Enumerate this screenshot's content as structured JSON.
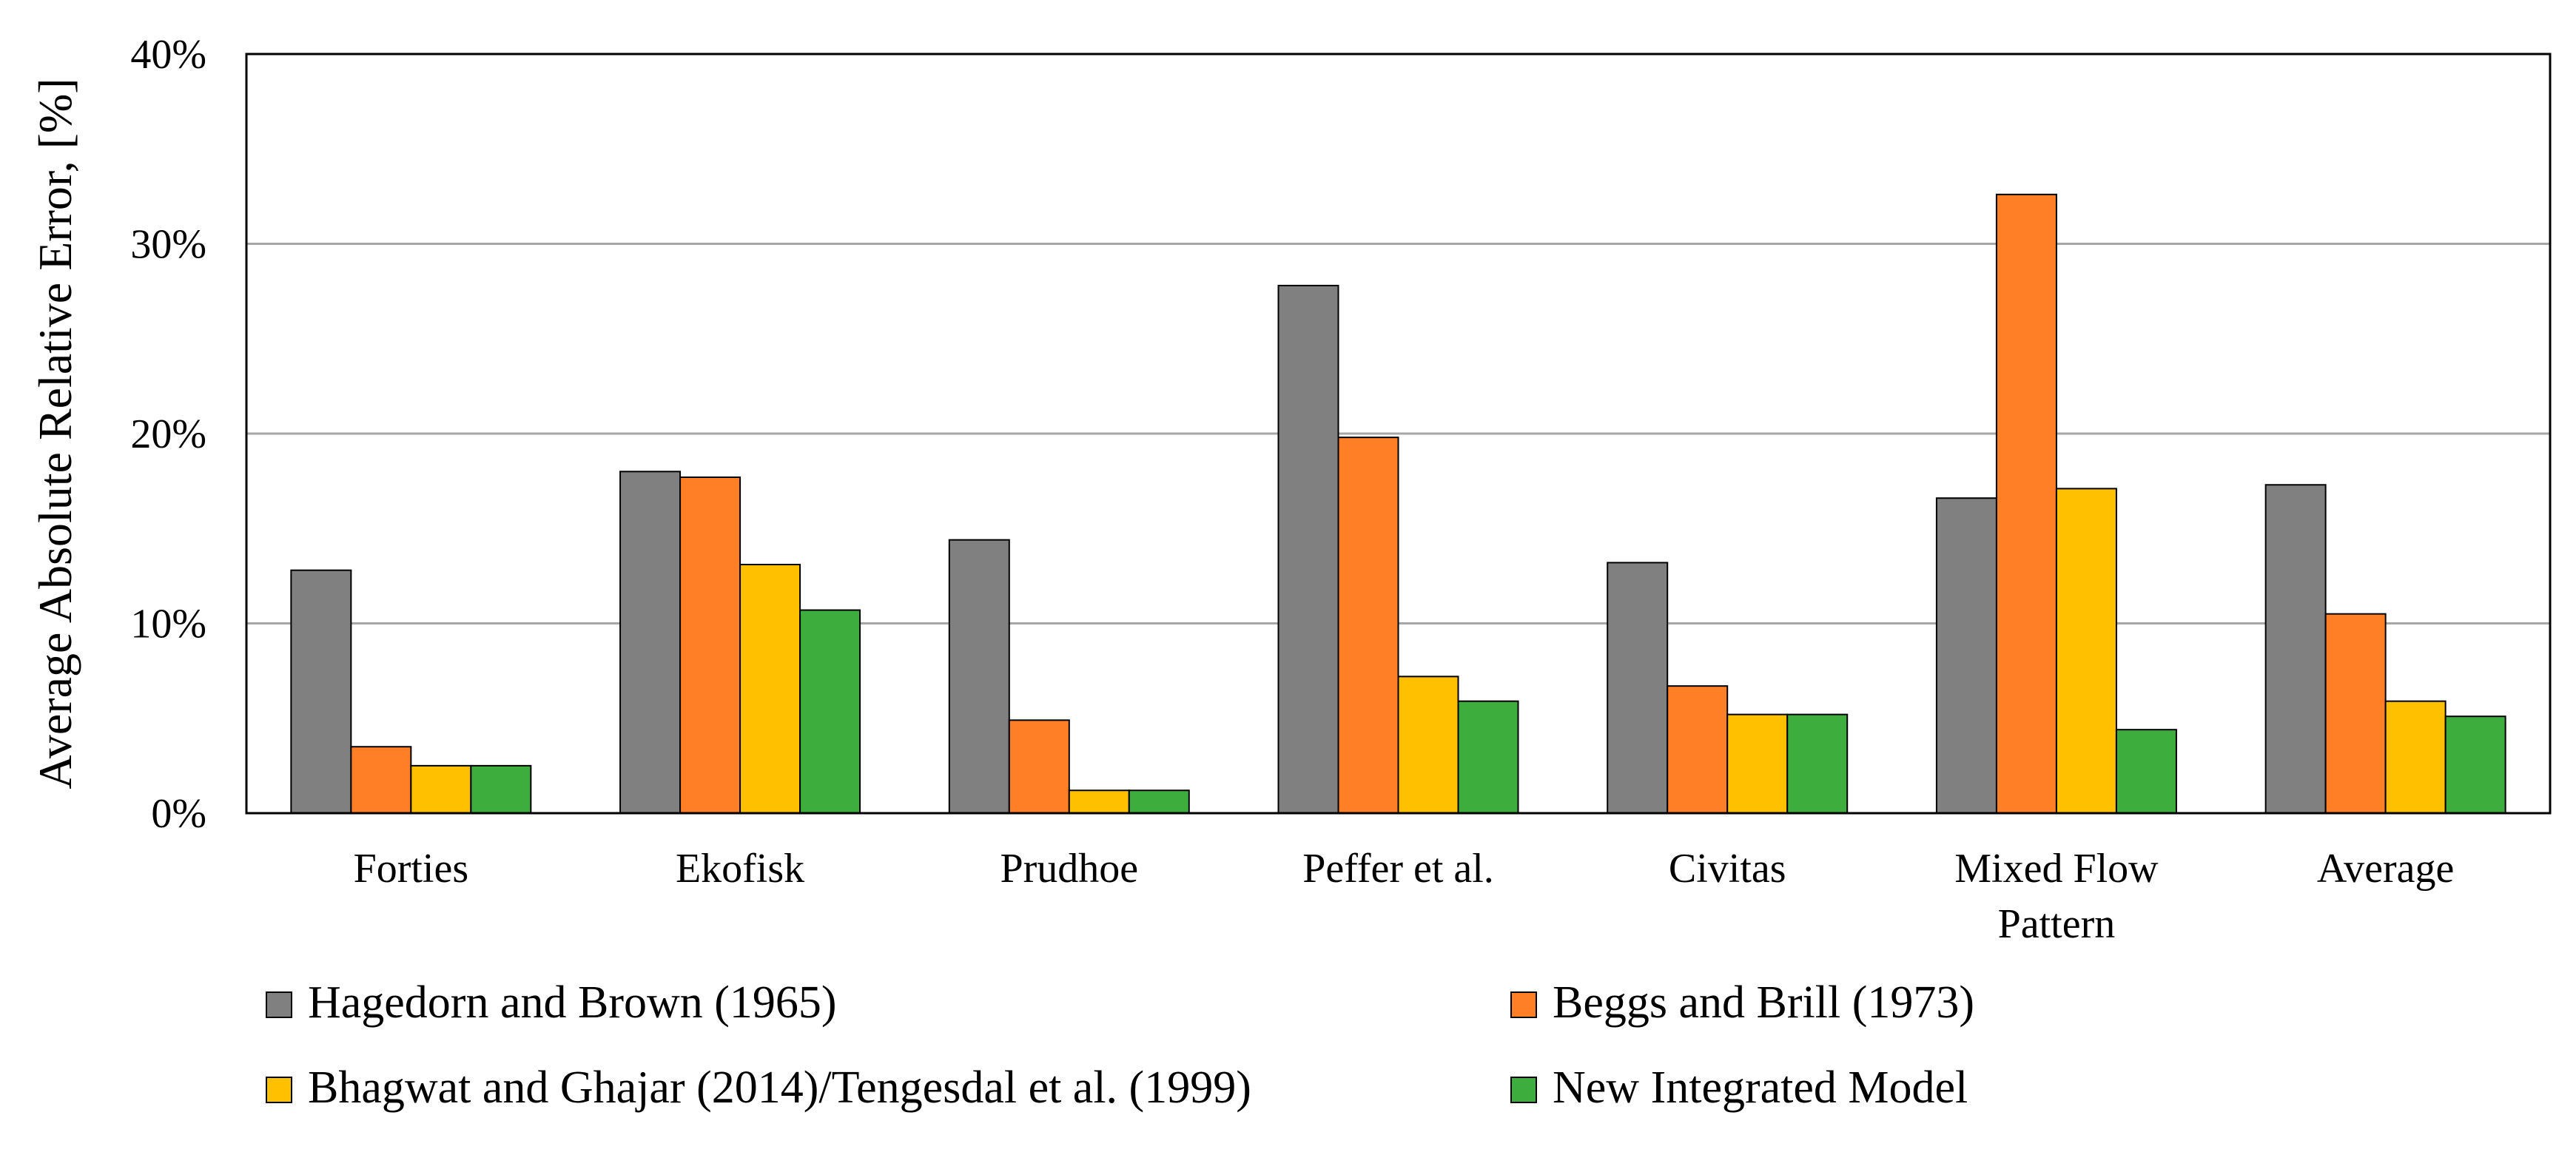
{
  "chart_data": {
    "type": "bar",
    "title": "",
    "xlabel": "",
    "ylabel": "Average  Absolute  Relative  Error,  [%]",
    "ylim": [
      0,
      40
    ],
    "yticks": [
      0,
      10,
      20,
      30,
      40
    ],
    "ytick_labels": [
      "0%",
      "10%",
      "20%",
      "30%",
      "40%"
    ],
    "grid": true,
    "legend_position": "bottom",
    "categories": [
      [
        "Forties"
      ],
      [
        "Ekofisk"
      ],
      [
        "Prudhoe"
      ],
      [
        "Peffer et al."
      ],
      [
        "Civitas"
      ],
      [
        "Mixed Flow",
        "Pattern"
      ],
      [
        "Average"
      ]
    ],
    "series": [
      {
        "name": "Hagedorn and Brown (1965)",
        "color": "#808080",
        "values": [
          12.8,
          18.0,
          14.4,
          27.8,
          13.2,
          16.6,
          17.3
        ]
      },
      {
        "name": "Beggs and Brill (1973)",
        "color": "#FF7F27",
        "values": [
          3.5,
          17.7,
          4.9,
          19.8,
          6.7,
          32.6,
          10.5
        ]
      },
      {
        "name": "Bhagwat and Ghajar (2014)/Tengesdal et al. (1999)",
        "color": "#FFC000",
        "values": [
          2.5,
          13.1,
          1.2,
          7.2,
          5.2,
          17.1,
          5.9
        ]
      },
      {
        "name": "New Integrated Model",
        "color": "#3DAE3D",
        "values": [
          2.5,
          10.7,
          1.2,
          5.9,
          5.2,
          4.4,
          5.1
        ]
      }
    ]
  }
}
